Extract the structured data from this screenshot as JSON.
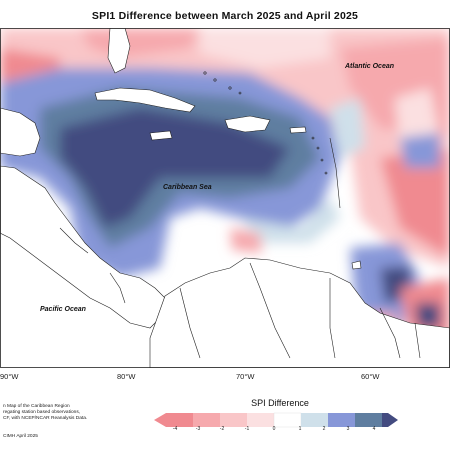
{
  "title": "SPI1 Difference between March 2025 and April 2025",
  "map": {
    "labels": {
      "atlantic": "Atlantic Ocean",
      "caribbean": "Caribbean Sea",
      "pacific": "Pacific Ocean"
    },
    "longitude_ticks": [
      "90°W",
      "80°W",
      "70°W",
      "60°W"
    ]
  },
  "footer": {
    "line1": "n Map of the Caribbean Region",
    "line2": "regating station based observations,",
    "line3": "CF, with NCEP/NCAR Reanalysis Data.",
    "credit": "CIMH April 2025"
  },
  "legend": {
    "title": "SPI Difference",
    "ticks": [
      "-4",
      "-3",
      "-2",
      "-1",
      "0",
      "1",
      "2",
      "3",
      "4"
    ],
    "colors": {
      "neg4": "#f08a90",
      "neg3": "#f6a9ad",
      "neg2": "#f9c6c8",
      "neg1": "#fbe0e1",
      "zero": "#ffffff",
      "pos1": "#cfe0ea",
      "pos2": "#8797d8",
      "pos3": "#5f7ea0",
      "pos4": "#434b80"
    }
  }
}
